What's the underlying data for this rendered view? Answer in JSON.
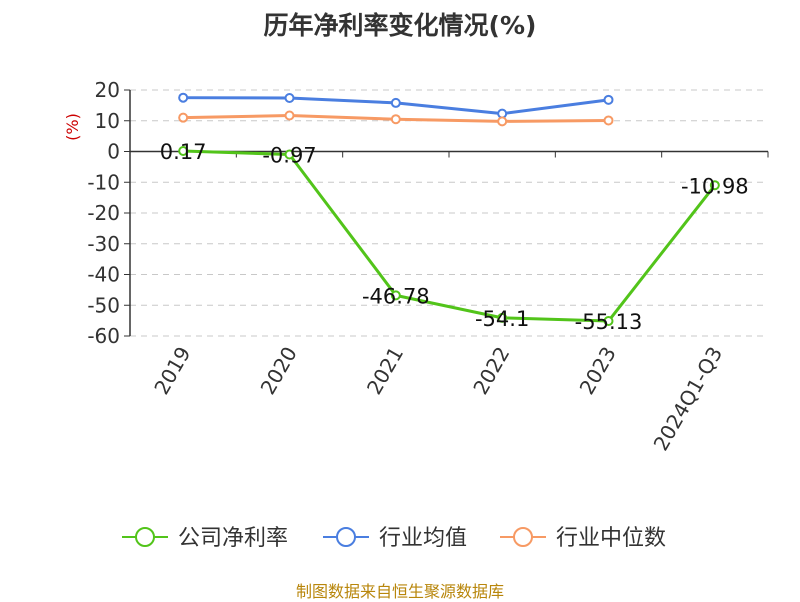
{
  "chart_data": {
    "type": "line",
    "title": "历年净利率变化情况(%)",
    "unit": "(%)",
    "categories": [
      "2019",
      "2020",
      "2021",
      "2022",
      "2023",
      "2024Q1-Q3"
    ],
    "yticks": [
      20,
      10,
      0,
      -10,
      -20,
      -30,
      -40,
      -50,
      -60
    ],
    "ylim": [
      -60,
      20
    ],
    "grid": true,
    "legend_position": "bottom",
    "series": [
      {
        "name": "公司净利率",
        "color": "#52c41a",
        "values": [
          0.17,
          -0.97,
          -46.78,
          -54.1,
          -55.13,
          -10.98
        ],
        "labels": [
          "0.17",
          "-0.97",
          "-46.78",
          "-54.1",
          "-55.13",
          "-10.98"
        ]
      },
      {
        "name": "行业均值",
        "color": "#4a7ee0",
        "values": [
          17.5,
          17.4,
          15.8,
          12.3,
          16.8,
          null
        ]
      },
      {
        "name": "行业中位数",
        "color": "#f79a64",
        "values": [
          11.0,
          11.7,
          10.5,
          9.8,
          10.1,
          null
        ]
      }
    ]
  },
  "footer": "制图数据来自恒生聚源数据库"
}
